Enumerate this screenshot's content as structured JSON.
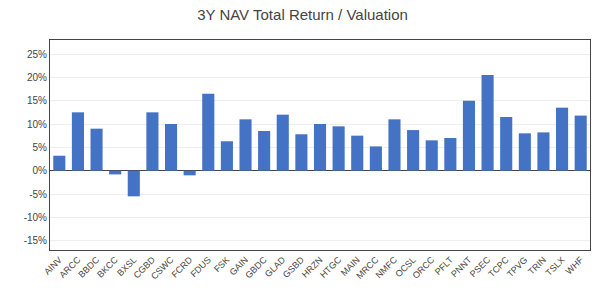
{
  "chart_data": {
    "type": "bar",
    "title": "3Y NAV Total Return / Valuation",
    "categories": [
      "AINV",
      "ARCC",
      "BBDC",
      "BKCC",
      "BXSL",
      "CGBD",
      "CSWC",
      "FCRD",
      "FDUS",
      "FSK",
      "GAIN",
      "GBDC",
      "GLAD",
      "GSBD",
      "HRZN",
      "HTGC",
      "MAIN",
      "MRCC",
      "NMFC",
      "OCSL",
      "ORCC",
      "PFLT",
      "PNNT",
      "PSEC",
      "TCPC",
      "TPVG",
      "TRIN",
      "TSLX",
      "WHF"
    ],
    "values": [
      3.2,
      12.5,
      9.0,
      -0.8,
      -5.5,
      12.5,
      10.0,
      -1.0,
      16.5,
      6.3,
      11.0,
      8.5,
      12.0,
      7.8,
      10.0,
      9.5,
      7.5,
      5.2,
      11.0,
      8.7,
      6.5,
      7.0,
      15.0,
      20.5,
      11.5,
      8.0,
      8.2,
      13.5,
      11.8
    ],
    "color": "#4472C4",
    "ylim": [
      -17,
      28
    ],
    "yticks": [
      {
        "value": -15,
        "label": "-15%"
      },
      {
        "value": -10,
        "label": "-10%"
      },
      {
        "value": -5,
        "label": "-5%"
      },
      {
        "value": 0,
        "label": "0%"
      },
      {
        "value": 5,
        "label": "5%"
      },
      {
        "value": 10,
        "label": "10%"
      },
      {
        "value": 15,
        "label": "15%"
      },
      {
        "value": 20,
        "label": "20%"
      },
      {
        "value": 25,
        "label": "25%"
      }
    ],
    "grid": true
  }
}
